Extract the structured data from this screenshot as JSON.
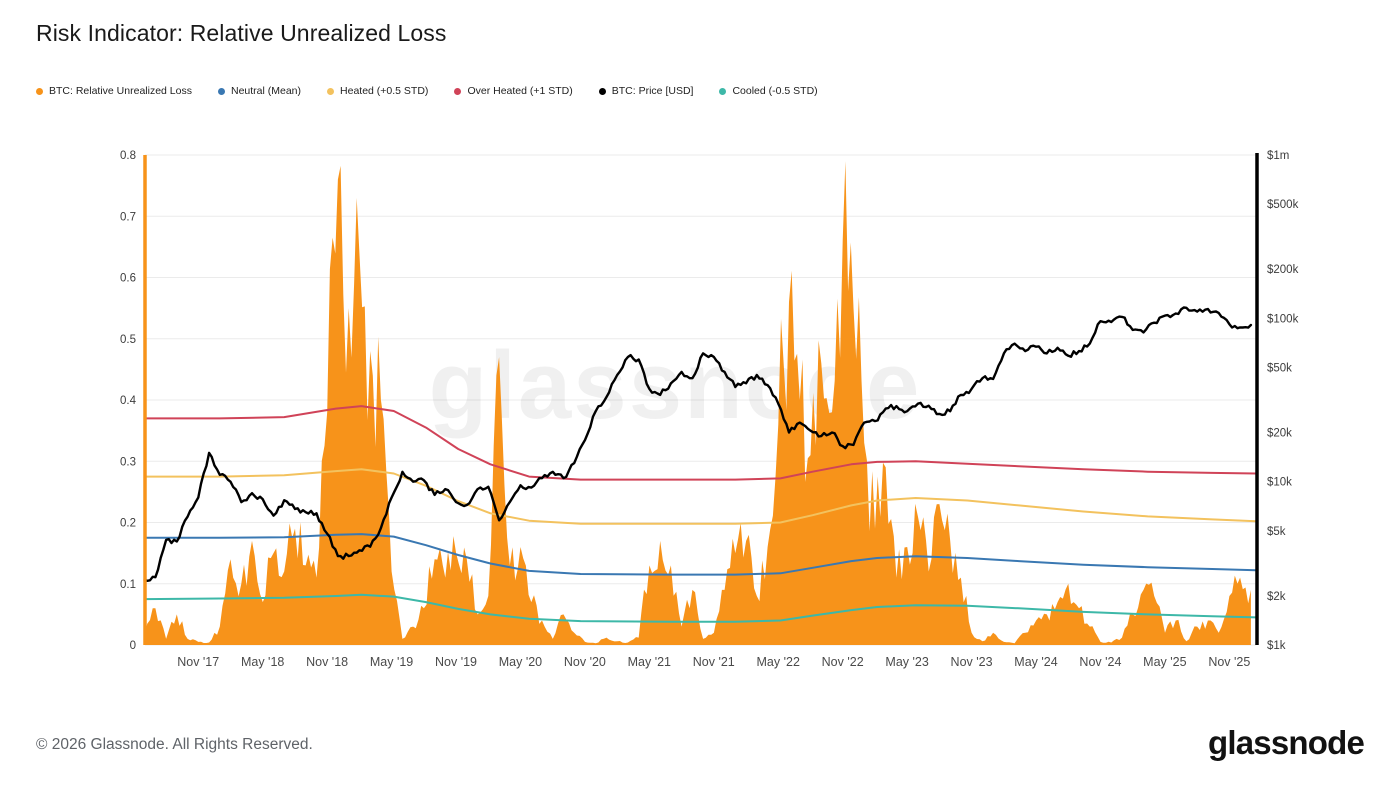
{
  "page": {
    "title": "Risk Indicator: Relative Unrealized Loss",
    "footer_copyright": "© 2026 Glassnode. All Rights Reserved.",
    "brand_logo_text": "glassnode",
    "watermark_text": "glassnode"
  },
  "legend": {
    "items": [
      {
        "label": "BTC: Relative Unrealized Loss",
        "color": "#f7931a"
      },
      {
        "label": "Neutral (Mean)",
        "color": "#3a78b2"
      },
      {
        "label": "Heated (+0.5 STD)",
        "color": "#f3c25e"
      },
      {
        "label": "Over Heated (+1 STD)",
        "color": "#d04358"
      },
      {
        "label": "BTC: Price [USD]",
        "color": "#000000"
      },
      {
        "label": "Cooled (-0.5 STD)",
        "color": "#3db8a8"
      }
    ]
  },
  "chart_data": {
    "type": "line",
    "title": "Risk Indicator: Relative Unrealized Loss",
    "x_range": [
      2017.42,
      2026.04
    ],
    "grid": "horizontal",
    "legend_position": "top",
    "x_axis": {
      "ticks": [
        {
          "label": "Nov '17",
          "value": 2017.833
        },
        {
          "label": "May '18",
          "value": 2018.333
        },
        {
          "label": "Nov '18",
          "value": 2018.833
        },
        {
          "label": "May '19",
          "value": 2019.333
        },
        {
          "label": "Nov '19",
          "value": 2019.833
        },
        {
          "label": "May '20",
          "value": 2020.333
        },
        {
          "label": "Nov '20",
          "value": 2020.833
        },
        {
          "label": "May '21",
          "value": 2021.333
        },
        {
          "label": "Nov '21",
          "value": 2021.833
        },
        {
          "label": "May '22",
          "value": 2022.333
        },
        {
          "label": "Nov '22",
          "value": 2022.833
        },
        {
          "label": "May '23",
          "value": 2023.333
        },
        {
          "label": "Nov '23",
          "value": 2023.833
        },
        {
          "label": "May '24",
          "value": 2024.333
        },
        {
          "label": "Nov '24",
          "value": 2024.833
        },
        {
          "label": "May '25",
          "value": 2025.333
        },
        {
          "label": "Nov '25",
          "value": 2025.833
        }
      ]
    },
    "left_axis": {
      "min": 0,
      "max": 0.8,
      "spine_color": "#f7931a",
      "ticks": [
        {
          "label": "0",
          "value": 0
        },
        {
          "label": "0.1",
          "value": 0.1
        },
        {
          "label": "0.2",
          "value": 0.2
        },
        {
          "label": "0.3",
          "value": 0.3
        },
        {
          "label": "0.4",
          "value": 0.4
        },
        {
          "label": "0.5",
          "value": 0.5
        },
        {
          "label": "0.6",
          "value": 0.6
        },
        {
          "label": "0.7",
          "value": 0.7
        },
        {
          "label": "0.8",
          "value": 0.8
        }
      ]
    },
    "right_axis": {
      "min": 1000,
      "max": 1000000,
      "scale": "log",
      "spine_color": "#000000",
      "ticks": [
        {
          "label": "$1k",
          "value": 1000
        },
        {
          "label": "$2k",
          "value": 2000
        },
        {
          "label": "$5k",
          "value": 5000
        },
        {
          "label": "$10k",
          "value": 10000
        },
        {
          "label": "$20k",
          "value": 20000
        },
        {
          "label": "$50k",
          "value": 50000
        },
        {
          "label": "$100k",
          "value": 100000
        },
        {
          "label": "$200k",
          "value": 200000
        },
        {
          "label": "$500k",
          "value": 500000
        },
        {
          "label": "$1m",
          "value": 1000000
        }
      ]
    },
    "x_bands": [
      2017.42,
      2018.0,
      2018.5,
      2018.9,
      2019.1,
      2019.35,
      2019.6,
      2019.85,
      2020.1,
      2020.4,
      2020.8,
      2021.5,
      2022.0,
      2022.35,
      2022.6,
      2022.9,
      2023.1,
      2023.4,
      2023.8,
      2024.2,
      2024.7,
      2025.2,
      2025.7,
      2026.04
    ],
    "series": [
      {
        "name": "BTC: Relative Unrealized Loss",
        "type": "area",
        "axis": "left",
        "color": "#f7931a",
        "x_start": 2017.417,
        "x_step": 0.0833333,
        "values": [
          0.02,
          0.06,
          0.01,
          0.05,
          0.01,
          0.005,
          0.004,
          0.03,
          0.14,
          0.1,
          0.17,
          0.07,
          0.15,
          0.12,
          0.19,
          0.13,
          0.11,
          0.38,
          0.76,
          0.55,
          0.64,
          0.48,
          0.4,
          0.12,
          0.01,
          0.03,
          0.06,
          0.14,
          0.11,
          0.15,
          0.14,
          0.05,
          0.08,
          0.47,
          0.13,
          0.16,
          0.07,
          0.04,
          0.01,
          0.05,
          0.02,
          0.005,
          0.003,
          0.012,
          0.006,
          0.004,
          0.012,
          0.13,
          0.17,
          0.13,
          0.03,
          0.09,
          0.01,
          0.02,
          0.09,
          0.15,
          0.17,
          0.08,
          0.16,
          0.36,
          0.56,
          0.4,
          0.31,
          0.46,
          0.38,
          0.66,
          0.55,
          0.33,
          0.19,
          0.29,
          0.11,
          0.16,
          0.21,
          0.12,
          0.23,
          0.17,
          0.11,
          0.02,
          0.006,
          0.02,
          0.005,
          0.003,
          0.02,
          0.04,
          0.05,
          0.07,
          0.1,
          0.06,
          0.03,
          0.005,
          0.004,
          0.012,
          0.05,
          0.09,
          0.08,
          0.02,
          0.04,
          0.006,
          0.03,
          0.04,
          0.02,
          0.08,
          0.11,
          0.09
        ]
      },
      {
        "name": "Cooled (-0.5 STD)",
        "type": "line",
        "axis": "left",
        "color": "#3db8a8",
        "width": 2,
        "x_ref": "x_bands",
        "values": [
          0.075,
          0.076,
          0.077,
          0.08,
          0.082,
          0.079,
          0.07,
          0.059,
          0.05,
          0.043,
          0.039,
          0.038,
          0.038,
          0.04,
          0.048,
          0.057,
          0.062,
          0.065,
          0.064,
          0.06,
          0.054,
          0.05,
          0.047,
          0.045
        ]
      },
      {
        "name": "Neutral (Mean)",
        "type": "line",
        "axis": "left",
        "color": "#3a78b2",
        "width": 2,
        "x_ref": "x_bands",
        "values": [
          0.175,
          0.175,
          0.176,
          0.18,
          0.181,
          0.177,
          0.163,
          0.147,
          0.133,
          0.121,
          0.116,
          0.115,
          0.115,
          0.117,
          0.126,
          0.137,
          0.142,
          0.145,
          0.142,
          0.137,
          0.131,
          0.127,
          0.124,
          0.122
        ]
      },
      {
        "name": "Heated (+0.5 STD)",
        "type": "line",
        "axis": "left",
        "color": "#f3c25e",
        "width": 2,
        "x_ref": "x_bands",
        "values": [
          0.275,
          0.275,
          0.277,
          0.284,
          0.287,
          0.28,
          0.26,
          0.235,
          0.215,
          0.203,
          0.198,
          0.198,
          0.198,
          0.2,
          0.212,
          0.228,
          0.236,
          0.24,
          0.236,
          0.228,
          0.218,
          0.21,
          0.205,
          0.202
        ]
      },
      {
        "name": "Over Heated (+1 STD)",
        "type": "line",
        "axis": "left",
        "color": "#d04358",
        "width": 2,
        "x_ref": "x_bands",
        "values": [
          0.37,
          0.37,
          0.372,
          0.386,
          0.39,
          0.382,
          0.355,
          0.32,
          0.295,
          0.275,
          0.27,
          0.27,
          0.27,
          0.272,
          0.283,
          0.295,
          0.299,
          0.3,
          0.296,
          0.292,
          0.287,
          0.283,
          0.281,
          0.28
        ]
      },
      {
        "name": "BTC: Price [USD]",
        "type": "line",
        "axis": "right",
        "color": "#000000",
        "width": 2.4,
        "x_start": 2017.417,
        "x_step": 0.0833333,
        "values": [
          2500,
          2600,
          4400,
          4300,
          6100,
          8000,
          15000,
          11000,
          10000,
          7500,
          8500,
          7800,
          6200,
          7700,
          6800,
          6500,
          6400,
          4800,
          3500,
          3500,
          3800,
          4000,
          5200,
          8000,
          11500,
          10000,
          10200,
          8300,
          9000,
          7500,
          7200,
          9000,
          9300,
          5800,
          7500,
          9500,
          9200,
          10500,
          11500,
          10500,
          13000,
          18000,
          27000,
          33000,
          45000,
          58000,
          56000,
          37000,
          34000,
          40000,
          47000,
          43000,
          61000,
          58000,
          47000,
          38000,
          40000,
          45000,
          39000,
          30000,
          20000,
          23000,
          20500,
          19000,
          20000,
          16500,
          16800,
          23000,
          23500,
          28000,
          29000,
          27000,
          30000,
          29200,
          26000,
          27000,
          34000,
          37000,
          43000,
          42500,
          61000,
          70000,
          63000,
          67000,
          61000,
          66000,
          59000,
          63000,
          70000,
          96000,
          95000,
          102000,
          85000,
          82000,
          94000,
          104000,
          107000,
          116000,
          110000,
          114000,
          108000,
          92000,
          88000,
          91000
        ]
      }
    ]
  }
}
